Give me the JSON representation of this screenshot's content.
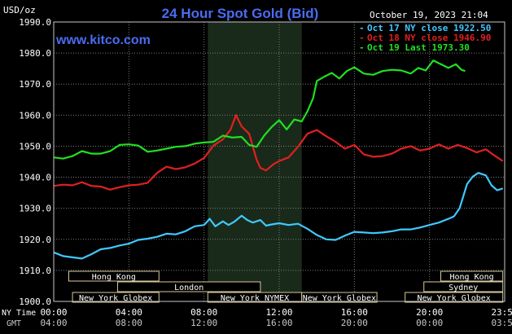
{
  "colors": {
    "background": "#000000",
    "plot_border": "#c8c8c8",
    "grid": "#7a7a7a",
    "title": "#4a6cf0",
    "watermark": "#4a6cf0",
    "text": "#ffffff",
    "muted_text": "#c8c8c8",
    "nymex_shade": "#1a2a1a",
    "session_box_fill": "#000000",
    "session_box_border": "#d8c898",
    "session_text": "#ffffff"
  },
  "chart_data": {
    "type": "line",
    "title": "24 Hour Spot Gold (Bid)",
    "ylabel": "USD/oz",
    "timestamp": "October 19, 2023 21:04",
    "watermark": "www.kitco.com",
    "ylim": [
      1900.0,
      1990.0
    ],
    "y_ticks": [
      "1900.0",
      "1910.0",
      "1920.0",
      "1930.0",
      "1940.0",
      "1950.0",
      "1960.0",
      "1970.0",
      "1980.0",
      "1990.0"
    ],
    "xlim": [
      0,
      24
    ],
    "x_ticks": [
      {
        "hour": 0,
        "ny": "00:00",
        "gmt": "04:00"
      },
      {
        "hour": 4,
        "ny": "04:00",
        "gmt": "08:00"
      },
      {
        "hour": 8,
        "ny": "08:00",
        "gmt": "12:00"
      },
      {
        "hour": 12,
        "ny": "12:00",
        "gmt": "16:00"
      },
      {
        "hour": 16,
        "ny": "16:00",
        "gmt": "20:00"
      },
      {
        "hour": 20,
        "ny": "20:00",
        "gmt": "00:00"
      },
      {
        "hour": 24,
        "ny": "23:59",
        "gmt": "03:59"
      }
    ],
    "x_axis_labels": {
      "ny": "NY Time",
      "gmt": "GMT"
    },
    "grid": true,
    "legend_placement": "top-right",
    "nymex_window": [
      8.2,
      13.2
    ],
    "sessions": [
      {
        "label": "Hong Kong",
        "start": 0.8,
        "end": 5.6,
        "row": 0
      },
      {
        "label": "Hong Kong",
        "start": 20.6,
        "end": 23.9,
        "row": 0
      },
      {
        "label": "London",
        "start": 3.4,
        "end": 11.0,
        "row": 1
      },
      {
        "label": "Sydney",
        "start": 19.7,
        "end": 23.9,
        "row": 1
      },
      {
        "label": "New York Globex",
        "start": 1.0,
        "end": 5.6,
        "row": 2
      },
      {
        "label": "New York NYMEX",
        "start": 8.2,
        "end": 13.2,
        "row": 2
      },
      {
        "label": "New York Globex",
        "start": 13.2,
        "end": 17.2,
        "row": 2
      },
      {
        "label": "New York Globex",
        "start": 18.7,
        "end": 23.9,
        "row": 2
      }
    ],
    "series": [
      {
        "name": "Oct 17 NY close 1922.50",
        "color": "#40c8ff",
        "points": [
          [
            0,
            1915.8
          ],
          [
            0.5,
            1914.6
          ],
          [
            1,
            1914.2
          ],
          [
            1.5,
            1913.8
          ],
          [
            2,
            1915.2
          ],
          [
            2.5,
            1916.8
          ],
          [
            3,
            1917.2
          ],
          [
            3.5,
            1918.0
          ],
          [
            4,
            1918.6
          ],
          [
            4.5,
            1919.8
          ],
          [
            5,
            1920.2
          ],
          [
            5.5,
            1920.8
          ],
          [
            6,
            1921.8
          ],
          [
            6.5,
            1921.6
          ],
          [
            7,
            1922.6
          ],
          [
            7.5,
            1924.2
          ],
          [
            8,
            1924.6
          ],
          [
            8.3,
            1926.6
          ],
          [
            8.6,
            1924.2
          ],
          [
            9,
            1925.8
          ],
          [
            9.3,
            1924.6
          ],
          [
            9.6,
            1925.6
          ],
          [
            10,
            1927.6
          ],
          [
            10.3,
            1926.2
          ],
          [
            10.6,
            1925.4
          ],
          [
            11,
            1926.2
          ],
          [
            11.3,
            1924.4
          ],
          [
            11.6,
            1924.8
          ],
          [
            12,
            1925.2
          ],
          [
            12.5,
            1924.6
          ],
          [
            13,
            1925.0
          ],
          [
            13.5,
            1923.4
          ],
          [
            14,
            1921.4
          ],
          [
            14.5,
            1920.0
          ],
          [
            15,
            1919.8
          ],
          [
            15.5,
            1921.2
          ],
          [
            16,
            1922.4
          ],
          [
            16.5,
            1922.2
          ],
          [
            17,
            1922.0
          ],
          [
            17.5,
            1922.2
          ],
          [
            18,
            1922.6
          ],
          [
            18.5,
            1923.2
          ],
          [
            19,
            1923.2
          ],
          [
            19.5,
            1923.8
          ],
          [
            20,
            1924.6
          ],
          [
            20.5,
            1925.4
          ],
          [
            21,
            1926.6
          ],
          [
            21.3,
            1927.4
          ],
          [
            21.6,
            1930.0
          ],
          [
            22,
            1937.8
          ],
          [
            22.3,
            1940.2
          ],
          [
            22.6,
            1941.4
          ],
          [
            23,
            1940.6
          ],
          [
            23.3,
            1937.4
          ],
          [
            23.6,
            1935.8
          ],
          [
            23.9,
            1936.4
          ]
        ]
      },
      {
        "name": "Oct 18 NY close 1946.90",
        "color": "#e02020",
        "points": [
          [
            0,
            1937.2
          ],
          [
            0.5,
            1937.6
          ],
          [
            1,
            1937.4
          ],
          [
            1.5,
            1938.4
          ],
          [
            2,
            1937.2
          ],
          [
            2.5,
            1937.0
          ],
          [
            3,
            1936.0
          ],
          [
            3.5,
            1936.8
          ],
          [
            4,
            1937.4
          ],
          [
            4.5,
            1937.6
          ],
          [
            5,
            1938.2
          ],
          [
            5.5,
            1941.4
          ],
          [
            6,
            1943.4
          ],
          [
            6.5,
            1942.6
          ],
          [
            7,
            1943.2
          ],
          [
            7.5,
            1944.4
          ],
          [
            8,
            1946.2
          ],
          [
            8.5,
            1950.2
          ],
          [
            9,
            1952.2
          ],
          [
            9.4,
            1955.2
          ],
          [
            9.7,
            1960.0
          ],
          [
            10,
            1956.4
          ],
          [
            10.4,
            1954.0
          ],
          [
            10.8,
            1945.6
          ],
          [
            11,
            1943.0
          ],
          [
            11.3,
            1942.2
          ],
          [
            11.7,
            1944.2
          ],
          [
            12,
            1945.2
          ],
          [
            12.5,
            1946.4
          ],
          [
            13,
            1949.8
          ],
          [
            13.5,
            1954.0
          ],
          [
            14,
            1955.2
          ],
          [
            14.5,
            1953.2
          ],
          [
            15,
            1951.4
          ],
          [
            15.5,
            1949.2
          ],
          [
            16,
            1950.4
          ],
          [
            16.5,
            1947.4
          ],
          [
            17,
            1946.6
          ],
          [
            17.5,
            1946.8
          ],
          [
            18,
            1947.6
          ],
          [
            18.5,
            1949.2
          ],
          [
            19,
            1950.0
          ],
          [
            19.5,
            1948.6
          ],
          [
            20,
            1949.2
          ],
          [
            20.5,
            1950.6
          ],
          [
            21,
            1949.2
          ],
          [
            21.5,
            1950.4
          ],
          [
            22,
            1949.4
          ],
          [
            22.5,
            1948.0
          ],
          [
            23,
            1949.0
          ],
          [
            23.5,
            1946.8
          ],
          [
            23.9,
            1945.2
          ]
        ]
      },
      {
        "name": "Oct 19 Last 1973.30",
        "color": "#20e020",
        "points": [
          [
            0,
            1946.4
          ],
          [
            0.5,
            1946.0
          ],
          [
            1,
            1946.8
          ],
          [
            1.5,
            1948.4
          ],
          [
            2,
            1947.6
          ],
          [
            2.5,
            1947.6
          ],
          [
            3,
            1948.4
          ],
          [
            3.5,
            1950.4
          ],
          [
            4,
            1950.6
          ],
          [
            4.5,
            1950.2
          ],
          [
            5,
            1948.2
          ],
          [
            5.5,
            1948.6
          ],
          [
            6,
            1949.2
          ],
          [
            6.5,
            1949.8
          ],
          [
            7,
            1950.0
          ],
          [
            7.5,
            1950.8
          ],
          [
            8,
            1951.2
          ],
          [
            8.5,
            1951.4
          ],
          [
            9,
            1953.4
          ],
          [
            9.5,
            1952.8
          ],
          [
            10,
            1953.0
          ],
          [
            10.4,
            1950.4
          ],
          [
            10.8,
            1949.8
          ],
          [
            11.2,
            1953.4
          ],
          [
            11.6,
            1956.2
          ],
          [
            12,
            1958.4
          ],
          [
            12.4,
            1955.4
          ],
          [
            12.8,
            1958.6
          ],
          [
            13.2,
            1958.0
          ],
          [
            13.5,
            1961.2
          ],
          [
            13.8,
            1965.4
          ],
          [
            14,
            1971.0
          ],
          [
            14.4,
            1972.4
          ],
          [
            14.8,
            1973.6
          ],
          [
            15.2,
            1971.8
          ],
          [
            15.6,
            1974.2
          ],
          [
            16,
            1975.4
          ],
          [
            16.5,
            1973.4
          ],
          [
            17,
            1973.0
          ],
          [
            17.5,
            1974.2
          ],
          [
            18,
            1974.6
          ],
          [
            18.5,
            1974.4
          ],
          [
            19,
            1973.4
          ],
          [
            19.4,
            1975.2
          ],
          [
            19.8,
            1974.4
          ],
          [
            20.2,
            1977.6
          ],
          [
            20.6,
            1976.4
          ],
          [
            21,
            1975.2
          ],
          [
            21.4,
            1976.4
          ],
          [
            21.7,
            1974.6
          ],
          [
            21.9,
            1974.2
          ]
        ]
      }
    ]
  }
}
